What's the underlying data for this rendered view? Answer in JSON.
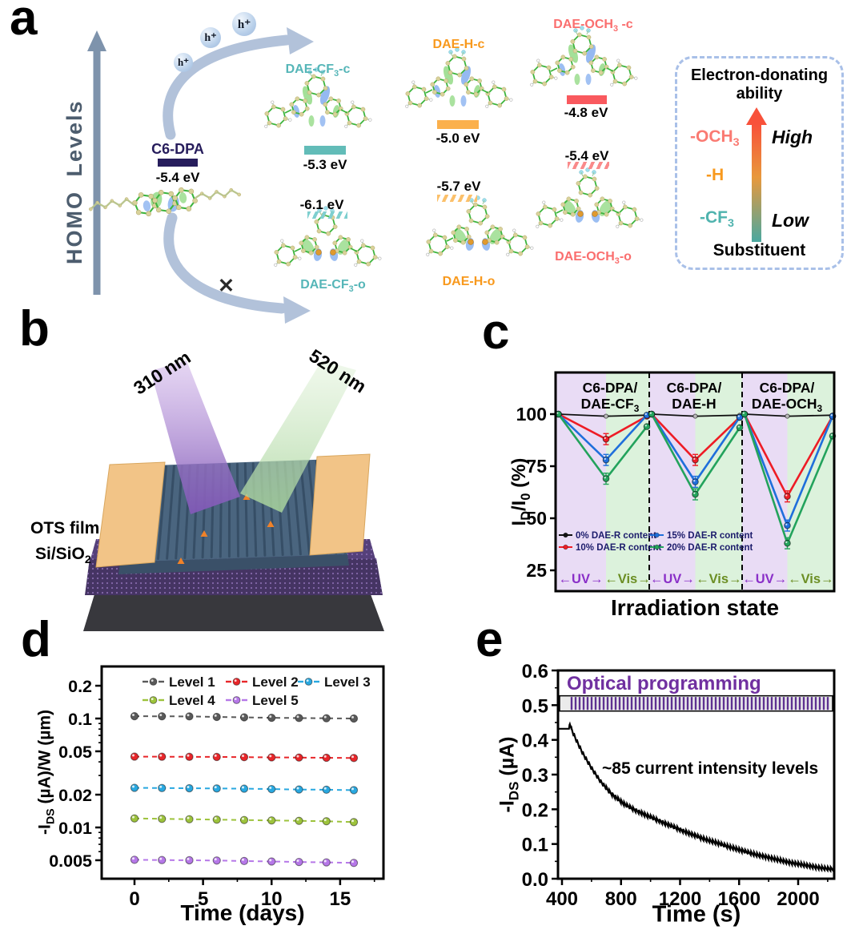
{
  "panels": {
    "a": {
      "label": "a",
      "homo_axis": "HOMO Levels",
      "hole_symbol": "h⁺",
      "c6dpa": {
        "name": "C6-DPA",
        "level": "-5.4 eV",
        "color": "#271d5c"
      },
      "closed": [
        {
          "name": "DAE-CF_{3}-c",
          "level": "-5.3 eV",
          "color": "#56b6b8",
          "bar": "#62bcb8"
        },
        {
          "name": "DAE-H-c",
          "level": "-5.0 eV",
          "color": "#f8991d",
          "bar": "#fbb04c"
        },
        {
          "name": "DAE-OCH_{3} -c",
          "level": "-4.8 eV",
          "color": "#fa6e6e",
          "bar": "#f9595e"
        }
      ],
      "open": [
        {
          "name": "DAE-CF_{3}-o",
          "level": "-6.1 eV",
          "color": "#56b6b8",
          "hatch": "#7ecfcf"
        },
        {
          "name": "DAE-H-o",
          "level": "-5.7 eV",
          "color": "#f8991d",
          "hatch": "#fbc06a"
        },
        {
          "name": "DAE-OCH_{3}-o",
          "level": "-5.4 eV",
          "color": "#fa6e6e",
          "hatch": "#f98a8a"
        }
      ],
      "cross": "✕",
      "legend": {
        "title_line1": "Electron-donating",
        "title_line2": "ability",
        "items": [
          {
            "label": "-OCH_{3}",
            "color": "#fa7a72"
          },
          {
            "label": "-H",
            "color": "#f8991d"
          },
          {
            "label": "-CF_{3}",
            "color": "#4fb3ae"
          }
        ],
        "high": "High",
        "low": "Low",
        "footer": "Substituent",
        "gradient": [
          "#4aa8a0",
          "#e8983c",
          "#f8513a"
        ]
      }
    },
    "b": {
      "label": "b",
      "beam_uv": "310 nm",
      "beam_vis": "520 nm",
      "layer_top": "OTS film",
      "layer_bottom": "Si/SiO_{2}"
    },
    "c": {
      "label": "c"
    },
    "d": {
      "label": "d"
    },
    "e": {
      "label": "e"
    }
  },
  "chart_data": [
    {
      "id": "photoswitching",
      "type": "line",
      "xlabel": "Irradiation state",
      "ylabel": "I_{D}/I_{0} (%)",
      "yticks": [
        100,
        75,
        50,
        25
      ],
      "ylim": [
        22,
        112
      ],
      "grid": false,
      "legend_position": "inside-bottom-left",
      "section_headers": [
        [
          "C6-DPA/",
          "DAE-CF_{3}"
        ],
        [
          "C6-DPA/",
          "DAE-H"
        ],
        [
          "C6-DPA/",
          "DAE-OCH_{3}"
        ]
      ],
      "series": [
        {
          "name": "0%  DAE-R content",
          "color": "#111111",
          "sections": [
            [
              100,
              99,
              99.5
            ],
            [
              100,
              99,
              99.5
            ],
            [
              100,
              99,
              99.5
            ]
          ]
        },
        {
          "name": "10% DAE-R content",
          "color": "#ee1c25",
          "sections": [
            [
              100,
              88,
              99
            ],
            [
              100,
              78,
              98.5
            ],
            [
              100,
              60.5,
              99
            ]
          ]
        },
        {
          "name": "15% DAE-R content",
          "color": "#1f6fdb",
          "sections": [
            [
              100,
              78,
              99.5
            ],
            [
              100,
              67.5,
              98.5
            ],
            [
              100,
              46.5,
              99
            ]
          ]
        },
        {
          "name": "20% DAE-R content",
          "color": "#23a35c",
          "sections": [
            [
              100,
              69,
              94
            ],
            [
              100,
              61.5,
              93.5
            ],
            [
              100,
              38,
              89.5
            ]
          ]
        }
      ],
      "dip_error": 1.5,
      "regions": {
        "uv": "←UV→",
        "vis": "←Vis→",
        "uv_color": "#8a2fc8",
        "vis_color": "#6b8e23",
        "uv_bg": "#e9dcf5",
        "vis_bg": "#dcf2dc"
      }
    },
    {
      "id": "retention",
      "type": "scatter",
      "xlabel": "Time (days)",
      "ylabel": "-I_{DS} (µA)/W (µm)",
      "yscale": "log",
      "x": [
        0,
        2,
        4,
        6,
        8,
        10,
        12,
        14,
        16
      ],
      "xticks": [
        0,
        5,
        10,
        15
      ],
      "yticks": [
        "0.2",
        "0.1",
        "0.05",
        "0.02",
        "0.01",
        "0.005"
      ],
      "legend_position": "inside-top",
      "series": [
        {
          "name": "Level 1",
          "color": "#5a5a5a",
          "values": [
            0.105,
            0.1048,
            0.1045,
            0.1035,
            0.1025,
            0.1015,
            0.101,
            0.1005,
            0.1
          ]
        },
        {
          "name": "Level 2",
          "color": "#e8262a",
          "values": [
            0.0447,
            0.0446,
            0.0445,
            0.0444,
            0.0442,
            0.044,
            0.0438,
            0.0436,
            0.0434
          ]
        },
        {
          "name": "Level 3",
          "color": "#29a8e0",
          "values": [
            0.0231,
            0.023,
            0.0229,
            0.0228,
            0.0227,
            0.0225,
            0.0223,
            0.0222,
            0.022
          ]
        },
        {
          "name": "Level 4",
          "color": "#9dc33c",
          "values": [
            0.0121,
            0.012,
            0.0119,
            0.0118,
            0.0117,
            0.0116,
            0.0115,
            0.0114,
            0.0112
          ]
        },
        {
          "name": "Level 5",
          "color": "#b678e8",
          "values": [
            0.00505,
            0.00502,
            0.005,
            0.00497,
            0.00492,
            0.00487,
            0.00482,
            0.00478,
            0.00473
          ]
        }
      ]
    },
    {
      "id": "programming",
      "type": "line",
      "xlabel": "Time (s)",
      "ylabel": "-I_{DS} (µA)",
      "xticks": [
        400,
        800,
        1200,
        1600,
        2000
      ],
      "yticks": [
        "0.0",
        "0.1",
        "0.2",
        "0.3",
        "0.4",
        "0.5",
        "0.6"
      ],
      "xlim": [
        373,
        2244
      ],
      "ylim": [
        0,
        0.6
      ],
      "banner": "Optical programming",
      "banner_color": "#7030a0",
      "annotation": "~85 current intensity levels",
      "pulse_bar": {
        "y_low": 0.483,
        "y_high": 0.527,
        "stripe_color": "#5e3191"
      },
      "sawtooth": {
        "amp": 0.006,
        "period": 20,
        "start": 460
      },
      "curve": [
        [
          375,
          0.432
        ],
        [
          448,
          0.432
        ],
        [
          452,
          0.447
        ],
        [
          465,
          0.43
        ],
        [
          480,
          0.415
        ],
        [
          495,
          0.401
        ],
        [
          510,
          0.388
        ],
        [
          525,
          0.375
        ],
        [
          540,
          0.362
        ],
        [
          555,
          0.351
        ],
        [
          570,
          0.34
        ],
        [
          585,
          0.33
        ],
        [
          600,
          0.319
        ],
        [
          615,
          0.309
        ],
        [
          630,
          0.3
        ],
        [
          645,
          0.29
        ],
        [
          660,
          0.281
        ],
        [
          680,
          0.271
        ],
        [
          700,
          0.261
        ],
        [
          720,
          0.251
        ],
        [
          740,
          0.243
        ],
        [
          760,
          0.236
        ],
        [
          780,
          0.229
        ],
        [
          800,
          0.222
        ],
        [
          830,
          0.213
        ],
        [
          860,
          0.206
        ],
        [
          890,
          0.199
        ],
        [
          920,
          0.193
        ],
        [
          950,
          0.187
        ],
        [
          980,
          0.181
        ],
        [
          1010,
          0.176
        ],
        [
          1040,
          0.17
        ],
        [
          1070,
          0.165
        ],
        [
          1100,
          0.159
        ],
        [
          1140,
          0.152
        ],
        [
          1180,
          0.145
        ],
        [
          1220,
          0.138
        ],
        [
          1260,
          0.131
        ],
        [
          1300,
          0.125
        ],
        [
          1340,
          0.118
        ],
        [
          1380,
          0.112
        ],
        [
          1420,
          0.107
        ],
        [
          1460,
          0.102
        ],
        [
          1500,
          0.096
        ],
        [
          1540,
          0.091
        ],
        [
          1580,
          0.086
        ],
        [
          1620,
          0.081
        ],
        [
          1660,
          0.076
        ],
        [
          1700,
          0.071
        ],
        [
          1740,
          0.067
        ],
        [
          1780,
          0.063
        ],
        [
          1820,
          0.059
        ],
        [
          1860,
          0.055
        ],
        [
          1900,
          0.051
        ],
        [
          1940,
          0.047
        ],
        [
          1980,
          0.044
        ],
        [
          2020,
          0.041
        ],
        [
          2060,
          0.038
        ],
        [
          2100,
          0.035
        ],
        [
          2140,
          0.032
        ],
        [
          2180,
          0.03
        ],
        [
          2244,
          0.027
        ]
      ]
    }
  ]
}
